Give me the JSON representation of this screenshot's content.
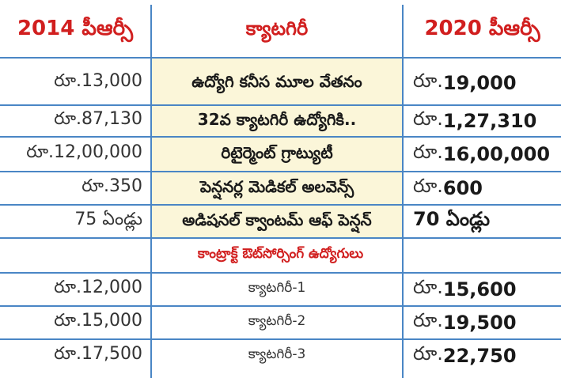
{
  "headers": {
    "col_2014": "2014 పీఆర్సీ",
    "col_category": "క్యాటగిరీ",
    "col_2020": "2020 పీఆర్సీ"
  },
  "rows": [
    {
      "old": "రూ.13,000",
      "category": "ఉద్యోగి కనీస మూల వేతనం",
      "new_prefix": "రూ.",
      "new_value": "19,000"
    },
    {
      "old": "రూ.87,130",
      "category": "32వ క్యాటగిరీ ఉద్యోగికి..",
      "new_prefix": "రూ.",
      "new_value": "1,27,310"
    },
    {
      "old": "రూ.12,00,000",
      "category": "రిటైర్మెంట్ గ్రాట్యుటీ",
      "new_prefix": "రూ.",
      "new_value": "16,00,000"
    },
    {
      "old": "రూ.350",
      "category": "పెన్షనర్ల మెడికల్ అలవెన్స్",
      "new_prefix": "రూ.",
      "new_value": "600"
    },
    {
      "old": "75 ఏండ్లు",
      "category": "అడిషనల్ క్వాంటమ్ ఆఫ్ పెన్షన్",
      "new_prefix": "",
      "new_value": "70 ఏండ్లు"
    }
  ],
  "section_title": "కాంట్రాక్ట్ ఔట్‌సోర్సింగ్ ఉద్యోగులు",
  "contract_rows": [
    {
      "old": "రూ.12,000",
      "category": "క్యాటగిరీ-1",
      "new_prefix": "రూ.",
      "new_value": "15,600"
    },
    {
      "old": "రూ.15,000",
      "category": "క్యాటగిరీ-2",
      "new_prefix": "రూ.",
      "new_value": "19,500"
    },
    {
      "old": "రూ.17,500",
      "category": "క్యాటగిరీ-3",
      "new_prefix": "రూ.",
      "new_value": "22,750"
    }
  ],
  "colors": {
    "header_text": "#d11f1f",
    "grid": "#4a86c5",
    "category_bg": "#fbf6d9"
  }
}
